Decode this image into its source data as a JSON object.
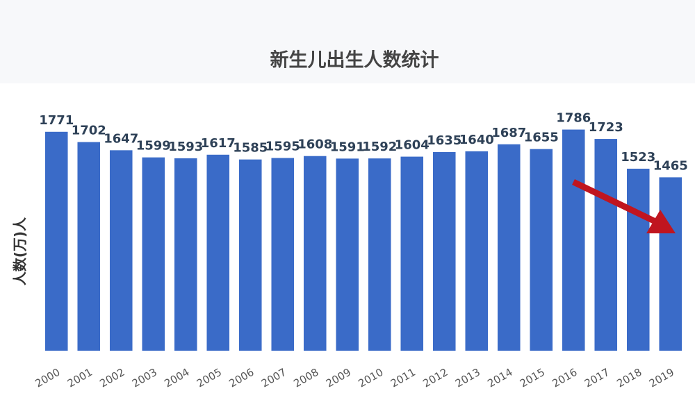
{
  "chart_data": {
    "type": "bar",
    "title": "新生儿出生人数统计",
    "y_label": "人数(万)人",
    "categories": [
      "2000",
      "2001",
      "2002",
      "2003",
      "2004",
      "2005",
      "2006",
      "2007",
      "2008",
      "2009",
      "2010",
      "2011",
      "2012",
      "2013",
      "2014",
      "2015",
      "2016",
      "2017",
      "2018",
      "2019"
    ],
    "values": [
      1771,
      1702,
      1647,
      1599,
      1593,
      1617,
      1585,
      1595,
      1608,
      1591,
      1592,
      1604,
      1635,
      1640,
      1687,
      1655,
      1786,
      1723,
      1523,
      1465
    ],
    "color": "#3a6bc8",
    "ylim": [
      300,
      2050
    ]
  }
}
